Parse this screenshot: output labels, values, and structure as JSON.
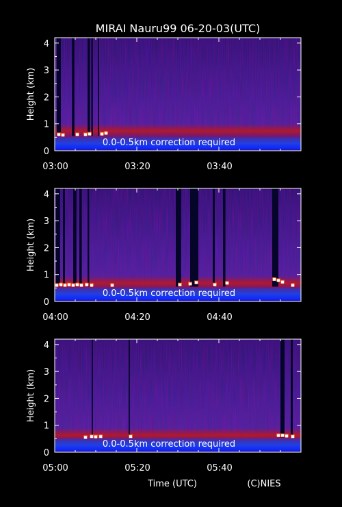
{
  "title": "MIRAI Nauru99 06-20-03(UTC)",
  "xlabel": "Time (UTC)",
  "credit": "(C)NIES",
  "colors": {
    "background": "#000000",
    "text": "#ffffff",
    "field_low": "#2a1a8a",
    "field_mid": "#4a2a9a",
    "near_surface": "#1030ff",
    "boundary_layer": "#c01010",
    "cloud": "#ffffff",
    "signal_loss": "#05052a"
  },
  "chart_data": [
    {
      "type": "heatmap",
      "ylabel": "Height (km)",
      "yticks": [
        0,
        1,
        2,
        3,
        4
      ],
      "ylim": [
        0,
        4.2
      ],
      "xlim_minutes": [
        0,
        60
      ],
      "xtick_labels": [
        "03:00",
        "03:20",
        "03:40"
      ],
      "xtick_minutes": [
        0,
        20,
        40
      ],
      "annotation": "0.0-0.5km correction required",
      "layer_top_km": 0.75,
      "signal_loss_minutes": [
        [
          0.5,
          1.5
        ],
        [
          4.2,
          4.8
        ],
        [
          8.0,
          8.6
        ],
        [
          8.9,
          9.3
        ],
        [
          10.5,
          10.8
        ]
      ],
      "clouds": [
        {
          "t": 1.0,
          "h": 0.6
        },
        {
          "t": 2.0,
          "h": 0.58
        },
        {
          "t": 5.5,
          "h": 0.6
        },
        {
          "t": 7.5,
          "h": 0.6
        },
        {
          "t": 8.5,
          "h": 0.62
        },
        {
          "t": 11.5,
          "h": 0.62
        },
        {
          "t": 12.5,
          "h": 0.65
        }
      ]
    },
    {
      "type": "heatmap",
      "ylabel": "Height (km)",
      "yticks": [
        0,
        1,
        2,
        3,
        4
      ],
      "ylim": [
        0,
        4.2
      ],
      "xlim_minutes": [
        0,
        60
      ],
      "xtick_labels": [
        "04:00",
        "04:20",
        "04:40"
      ],
      "xtick_minutes": [
        0,
        20,
        40
      ],
      "annotation": "0.0-0.5km correction required",
      "layer_top_km": 0.7,
      "signal_loss_minutes": [
        [
          0.3,
          1.3
        ],
        [
          2.0,
          2.5
        ],
        [
          4.5,
          5.3
        ],
        [
          6.0,
          6.6
        ],
        [
          8.0,
          8.4
        ],
        [
          29.5,
          30.8
        ],
        [
          33.0,
          35.0
        ],
        [
          38.5,
          39.0
        ],
        [
          41.0,
          41.6
        ],
        [
          53.0,
          54.5
        ]
      ],
      "clouds": [
        {
          "t": 0.5,
          "h": 0.6
        },
        {
          "t": 1.5,
          "h": 0.62
        },
        {
          "t": 2.5,
          "h": 0.6
        },
        {
          "t": 3.5,
          "h": 0.62
        },
        {
          "t": 4.5,
          "h": 0.6
        },
        {
          "t": 5.5,
          "h": 0.62
        },
        {
          "t": 6.5,
          "h": 0.6
        },
        {
          "t": 7.8,
          "h": 0.62
        },
        {
          "t": 9.0,
          "h": 0.6
        },
        {
          "t": 14.0,
          "h": 0.6
        },
        {
          "t": 30.5,
          "h": 0.62
        },
        {
          "t": 33.0,
          "h": 0.65
        },
        {
          "t": 34.5,
          "h": 0.7
        },
        {
          "t": 39.0,
          "h": 0.62
        },
        {
          "t": 42.0,
          "h": 0.68
        },
        {
          "t": 53.5,
          "h": 0.82
        },
        {
          "t": 54.5,
          "h": 0.78
        },
        {
          "t": 55.5,
          "h": 0.72
        },
        {
          "t": 58.0,
          "h": 0.6
        }
      ]
    },
    {
      "type": "heatmap",
      "ylabel": "Height (km)",
      "yticks": [
        0,
        1,
        2,
        3,
        4
      ],
      "ylim": [
        0,
        4.2
      ],
      "xlim_minutes": [
        0,
        60
      ],
      "xtick_labels": [
        "05:00",
        "05:20",
        "05:40"
      ],
      "xtick_minutes": [
        0,
        20,
        40
      ],
      "annotation": "0.0-0.5km correction required",
      "layer_top_km": 0.65,
      "signal_loss_minutes": [
        [
          9.0,
          9.3
        ],
        [
          18.0,
          18.3
        ],
        [
          55.0,
          56.0
        ],
        [
          57.5,
          58.0
        ]
      ],
      "clouds": [
        {
          "t": 7.5,
          "h": 0.55
        },
        {
          "t": 9.0,
          "h": 0.58
        },
        {
          "t": 10.0,
          "h": 0.57
        },
        {
          "t": 11.2,
          "h": 0.58
        },
        {
          "t": 18.5,
          "h": 0.58
        },
        {
          "t": 54.5,
          "h": 0.62
        },
        {
          "t": 55.5,
          "h": 0.62
        },
        {
          "t": 56.5,
          "h": 0.6
        },
        {
          "t": 58.0,
          "h": 0.58
        },
        {
          "t": 62.0,
          "h": 0.6
        }
      ]
    }
  ]
}
